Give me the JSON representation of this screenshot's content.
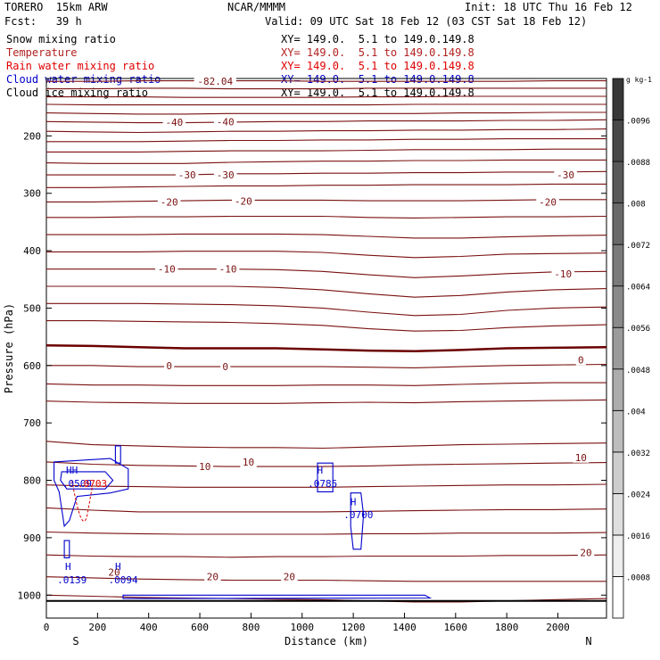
{
  "header": {
    "model": "TORERO  15km ARW",
    "center": "NCAR/MMMM",
    "init": "Init: 18 UTC Thu 16 Feb 12",
    "fcst": "Fcst:   39 h",
    "valid": "Valid: 09 UTC Sat 18 Feb 12 (03 CST Sat 18 Feb 12)"
  },
  "legend": [
    {
      "name": "Snow mixing ratio",
      "xy": "XY= 149.0.  5.1 to 149.0.149.8",
      "color": "#000000"
    },
    {
      "name": "Temperature",
      "xy": "XY= 149.0.  5.1 to 149.0.149.8",
      "color": "#b22222"
    },
    {
      "name": "Rain water mixing ratio",
      "xy": "XY= 149.0.  5.1 to 149.0.149.8",
      "color": "#e00000"
    },
    {
      "name": "Cloud water mixing ratio",
      "xy": "XY= 149.0.  5.1 to 149.0.149.8",
      "color": "#0000cc"
    },
    {
      "name": "Cloud ice mixing ratio",
      "xy": "XY= 149.0.  5.1 to 149.0.149.8",
      "color": "#000000"
    }
  ],
  "chart_data": {
    "type": "contour-cross-section",
    "xlabel": "Distance (km)",
    "ylabel": "Pressure (hPa)",
    "xlim": [
      0,
      2190
    ],
    "ylim": [
      1040,
      100
    ],
    "x_ticks": [
      0,
      200,
      400,
      600,
      800,
      1000,
      1200,
      1400,
      1600,
      1800,
      2000
    ],
    "y_ticks": [
      200,
      300,
      400,
      500,
      600,
      700,
      800,
      900,
      1000
    ],
    "x_end_labels": {
      "left": "S",
      "right": "N"
    },
    "temperature_contours": [
      {
        "level": -80,
        "p": [
          105,
          105,
          104,
          104,
          104,
          104,
          105,
          105,
          105,
          105,
          105,
          104,
          104
        ]
      },
      {
        "level": -70,
        "p": [
          118,
          118,
          117,
          117,
          118,
          118,
          118,
          117,
          117,
          117,
          117,
          117,
          117
        ]
      },
      {
        "level": -60,
        "p": [
          132,
          132,
          132,
          133,
          133,
          133,
          133,
          132,
          132,
          131,
          131,
          131,
          131
        ]
      },
      {
        "level": -50,
        "p": [
          145,
          146,
          146,
          146,
          146,
          146,
          146,
          146,
          145,
          145,
          145,
          145,
          145
        ]
      },
      {
        "level": -40,
        "p": [
          160,
          161,
          162,
          162,
          161,
          161,
          161,
          161,
          161,
          160,
          160,
          159,
          159
        ]
      },
      {
        "level": -40,
        "p": [
          175,
          176,
          177,
          177,
          176,
          175,
          175,
          174,
          174,
          174,
          173,
          173,
          172
        ]
      },
      {
        "level": -40,
        "p": [
          192,
          193,
          194,
          193,
          192,
          192,
          191,
          191,
          190,
          190,
          189,
          189,
          188
        ]
      },
      {
        "level": -40,
        "p": [
          210,
          210,
          210,
          209,
          208,
          208,
          207,
          207,
          206,
          206,
          205,
          205,
          205
        ]
      },
      {
        "level": -40,
        "p": [
          228,
          228,
          228,
          227,
          226,
          226,
          226,
          225,
          224,
          224,
          224,
          223,
          223
        ]
      },
      {
        "level": -40,
        "p": [
          247,
          248,
          248,
          248,
          246,
          245,
          244,
          244,
          243,
          243,
          242,
          242,
          242
        ]
      },
      {
        "level": -30,
        "p": [
          268,
          268,
          268,
          268,
          266,
          266,
          265,
          265,
          264,
          264,
          263,
          263,
          262
        ]
      },
      {
        "level": -30,
        "p": [
          290,
          290,
          289,
          288,
          287,
          287,
          286,
          286,
          285,
          285,
          285,
          284,
          284
        ]
      },
      {
        "level": -20,
        "p": [
          315,
          315,
          314,
          313,
          312,
          312,
          312,
          313,
          313,
          313,
          312,
          311,
          311
        ]
      },
      {
        "level": -20,
        "p": [
          342,
          342,
          341,
          341,
          340,
          340,
          340,
          342,
          343,
          342,
          341,
          341,
          340
        ]
      },
      {
        "level": -10,
        "p": [
          372,
          372,
          372,
          371,
          371,
          371,
          372,
          375,
          378,
          378,
          376,
          374,
          373
        ]
      },
      {
        "level": -10,
        "p": [
          402,
          402,
          402,
          401,
          401,
          401,
          403,
          408,
          412,
          410,
          406,
          405,
          404
        ]
      },
      {
        "level": -10,
        "p": [
          432,
          432,
          432,
          432,
          432,
          433,
          436,
          442,
          447,
          444,
          440,
          437,
          436
        ]
      },
      {
        "level": -10,
        "p": [
          462,
          462,
          462,
          462,
          462,
          464,
          468,
          475,
          481,
          478,
          472,
          468,
          466
        ]
      },
      {
        "level": -10,
        "p": [
          492,
          492,
          492,
          493,
          494,
          496,
          500,
          507,
          513,
          511,
          504,
          500,
          498
        ]
      },
      {
        "level": -10,
        "p": [
          522,
          522,
          523,
          524,
          525,
          527,
          530,
          536,
          540,
          539,
          534,
          531,
          529
        ]
      },
      {
        "level": 0,
        "p": [
          565,
          566,
          568,
          570,
          570,
          570,
          572,
          574,
          575,
          573,
          570,
          569,
          568
        ]
      },
      {
        "level": 0,
        "p": [
          600,
          600,
          602,
          602,
          602,
          602,
          602,
          603,
          604,
          602,
          600,
          599,
          598
        ]
      },
      {
        "level": 0,
        "p": [
          632,
          634,
          634,
          635,
          635,
          635,
          634,
          634,
          635,
          633,
          631,
          630,
          630
        ]
      },
      {
        "level": 0,
        "p": [
          662,
          664,
          665,
          666,
          666,
          666,
          665,
          664,
          665,
          663,
          662,
          661,
          660
        ]
      },
      {
        "level": 10,
        "p": [
          732,
          738,
          740,
          742,
          743,
          743,
          744,
          742,
          740,
          738,
          737,
          736,
          735
        ]
      },
      {
        "level": 10,
        "p": [
          768,
          772,
          774,
          775,
          776,
          776,
          776,
          775,
          773,
          772,
          771,
          770,
          769
        ]
      },
      {
        "level": 10,
        "p": [
          808,
          810,
          811,
          812,
          812,
          812,
          812,
          811,
          810,
          809,
          808,
          808,
          807
        ]
      },
      {
        "level": 10,
        "p": [
          848,
          852,
          855,
          855,
          855,
          855,
          855,
          854,
          853,
          852,
          851,
          851,
          850
        ]
      },
      {
        "level": 20,
        "p": [
          890,
          892,
          893,
          894,
          894,
          894,
          894,
          893,
          893,
          892,
          892,
          892,
          891
        ]
      },
      {
        "level": 20,
        "p": [
          930,
          932,
          933,
          933,
          934,
          933,
          933,
          932,
          932,
          932,
          931,
          931,
          930
        ]
      },
      {
        "level": 20,
        "p": [
          968,
          970,
          972,
          973,
          974,
          974,
          974,
          975,
          976,
          976,
          976,
          976,
          976
        ]
      },
      {
        "level": 20,
        "p": [
          1000,
          1002,
          1004,
          1005,
          1006,
          1007,
          1008,
          1010,
          1012,
          1012,
          1010,
          1008,
          1006
        ]
      }
    ],
    "contour_x": [
      0,
      180,
      360,
      540,
      720,
      900,
      1080,
      1260,
      1440,
      1620,
      1800,
      1980,
      2190
    ],
    "temperature_labels": [
      {
        "text": "-82.04",
        "x": 660,
        "p": 105
      },
      {
        "text": "-40",
        "x": 500,
        "p": 176
      },
      {
        "text": "-40",
        "x": 700,
        "p": 175
      },
      {
        "text": "-30",
        "x": 550,
        "p": 268
      },
      {
        "text": "-30",
        "x": 700,
        "p": 268
      },
      {
        "text": "-30",
        "x": 2030,
        "p": 268
      },
      {
        "text": "-20",
        "x": 480,
        "p": 315
      },
      {
        "text": "-20",
        "x": 770,
        "p": 314
      },
      {
        "text": "-20",
        "x": 1960,
        "p": 315
      },
      {
        "text": "-10",
        "x": 470,
        "p": 432
      },
      {
        "text": "-10",
        "x": 710,
        "p": 432
      },
      {
        "text": "-10",
        "x": 2020,
        "p": 440
      },
      {
        "text": "0",
        "x": 480,
        "p": 600
      },
      {
        "text": "0",
        "x": 700,
        "p": 602
      },
      {
        "text": "0",
        "x": 2090,
        "p": 590
      },
      {
        "text": "10",
        "x": 620,
        "p": 776
      },
      {
        "text": "10",
        "x": 790,
        "p": 768
      },
      {
        "text": "10",
        "x": 2090,
        "p": 760
      },
      {
        "text": "20",
        "x": 265,
        "p": 960
      },
      {
        "text": "20",
        "x": 650,
        "p": 968
      },
      {
        "text": "20",
        "x": 950,
        "p": 968
      },
      {
        "text": "20",
        "x": 2110,
        "p": 926
      }
    ],
    "cloud_water_labels": [
      {
        "text": "H",
        "x": 1070,
        "p": 782
      },
      {
        "text": ".0785",
        "x": 1080,
        "p": 805
      },
      {
        "text": "H",
        "x": 1200,
        "p": 837
      },
      {
        "text": ".0700",
        "x": 1220,
        "p": 860
      },
      {
        "text": "H",
        "x": 85,
        "p": 950
      },
      {
        "text": ".0139",
        "x": 100,
        "p": 973
      },
      {
        "text": "H",
        "x": 280,
        "p": 950
      },
      {
        "text": ".0094",
        "x": 300,
        "p": 973
      },
      {
        "text": "HH",
        "x": 100,
        "p": 782
      },
      {
        "text": ".0509",
        "x": 120,
        "p": 805
      }
    ],
    "rain_labels": [
      {
        "text": ".0703",
        "x": 180,
        "p": 805
      }
    ],
    "colorbar": {
      "unit": "g kg-1",
      "ticks": [
        ".0008",
        ".0016",
        ".0024",
        ".0032",
        ".004",
        ".0048",
        ".0056",
        ".0064",
        ".0072",
        ".008",
        ".0088",
        ".0096"
      ]
    }
  }
}
